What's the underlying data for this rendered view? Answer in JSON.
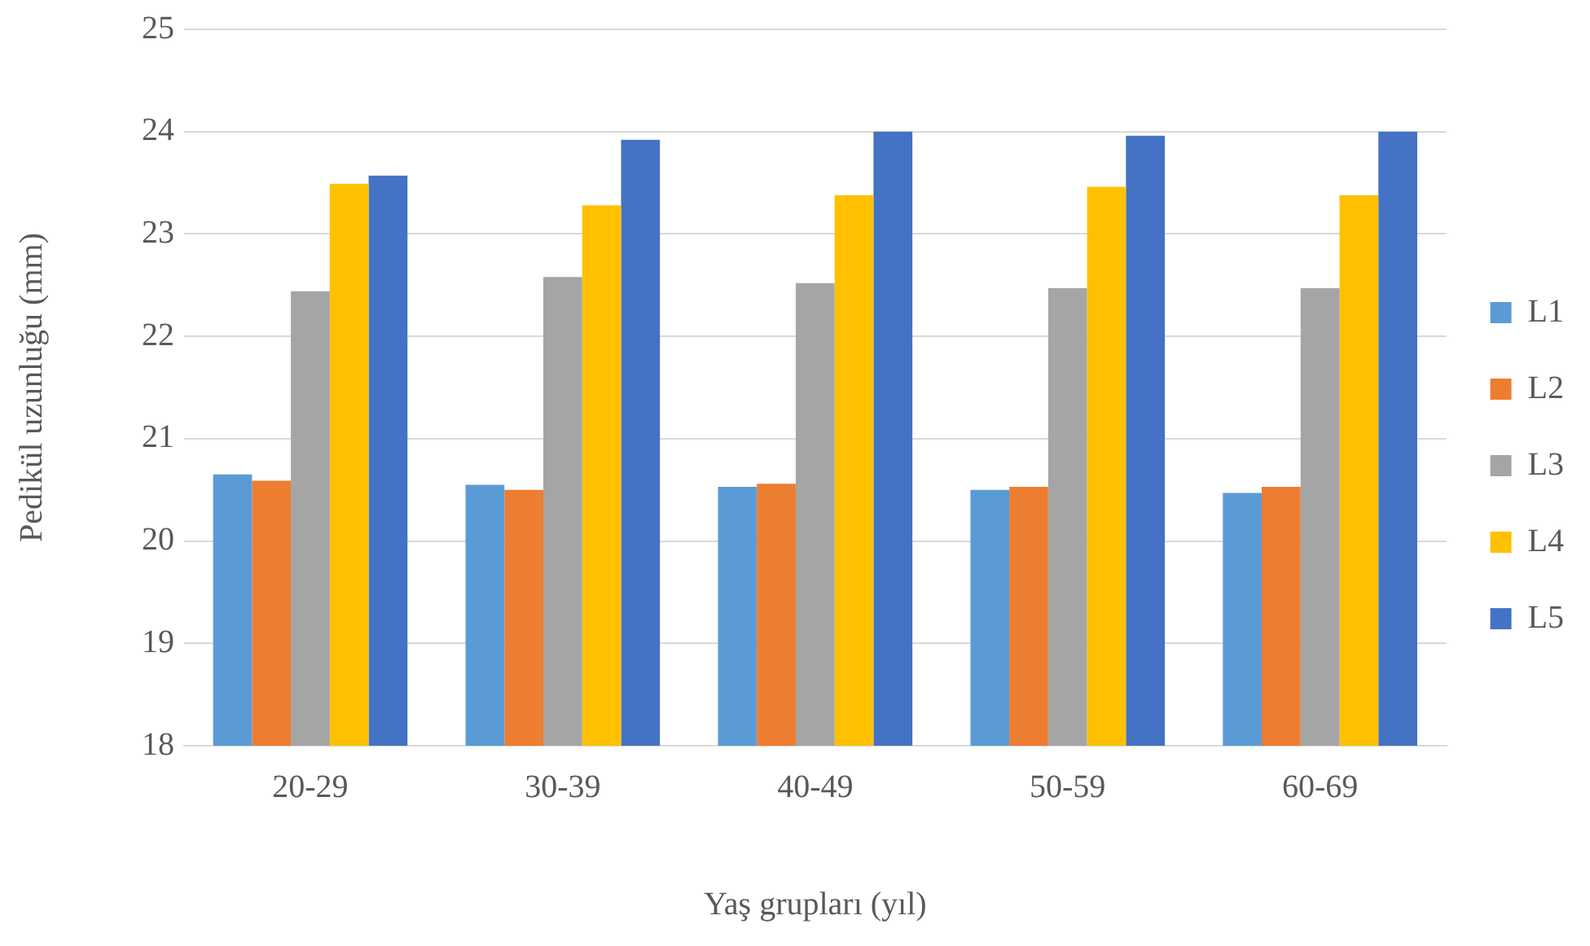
{
  "chart_data": {
    "type": "bar",
    "xlabel": "Yaş grupları (yıl)",
    "ylabel": "Pedikül uzunluğu (mm)",
    "categories": [
      "20-29",
      "30-39",
      "40-49",
      "50-59",
      "60-69"
    ],
    "series": [
      {
        "name": "L1",
        "color": "#5b9bd5",
        "values": [
          20.65,
          20.55,
          20.53,
          20.5,
          20.47
        ]
      },
      {
        "name": "L2",
        "color": "#ed7d31",
        "values": [
          20.59,
          20.5,
          20.56,
          20.53,
          20.53
        ]
      },
      {
        "name": "L3",
        "color": "#a5a5a5",
        "values": [
          22.44,
          22.58,
          22.52,
          22.47,
          22.47
        ]
      },
      {
        "name": "L4",
        "color": "#ffc000",
        "values": [
          23.49,
          23.28,
          23.38,
          23.46,
          23.38
        ]
      },
      {
        "name": "L5",
        "color": "#4472c4",
        "values": [
          23.57,
          23.92,
          24.0,
          23.96,
          24.0
        ]
      }
    ],
    "ylim": [
      18,
      25
    ],
    "yticks": [
      18,
      19,
      20,
      21,
      22,
      23,
      24,
      25
    ],
    "grid": "y",
    "legend": "right"
  }
}
